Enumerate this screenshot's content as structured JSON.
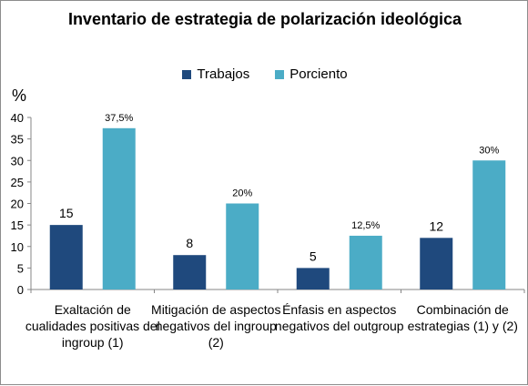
{
  "chart_data": {
    "type": "bar",
    "title": "Inventario de estrategia de polarización ideológica",
    "ylabel": "%",
    "ylim": [
      0,
      40
    ],
    "yticks": [
      "0",
      "5",
      "10",
      "15",
      "20",
      "25",
      "30",
      "35",
      "40"
    ],
    "grid": false,
    "legend_position": "top-center",
    "categories": [
      [
        "Exaltación de",
        "cualidades positivas del",
        "ingroup (1)"
      ],
      [
        "Mitigación de aspectos",
        "negativos del ingroup",
        "(2)"
      ],
      [
        "Énfasis en aspectos",
        "negativos del outgroup"
      ],
      [
        "Combinación de",
        "estrategias (1) y (2)"
      ]
    ],
    "series": [
      {
        "name": "Trabajos",
        "color": "#1f497d",
        "values": [
          15,
          8,
          5,
          12
        ],
        "labels": [
          "15",
          "8",
          "5",
          "12"
        ]
      },
      {
        "name": "Porciento",
        "color": "#4bacc6",
        "values": [
          37.5,
          20,
          12.5,
          30
        ],
        "labels": [
          "37,5%",
          "20%",
          "12,5%",
          "30%"
        ]
      }
    ]
  }
}
